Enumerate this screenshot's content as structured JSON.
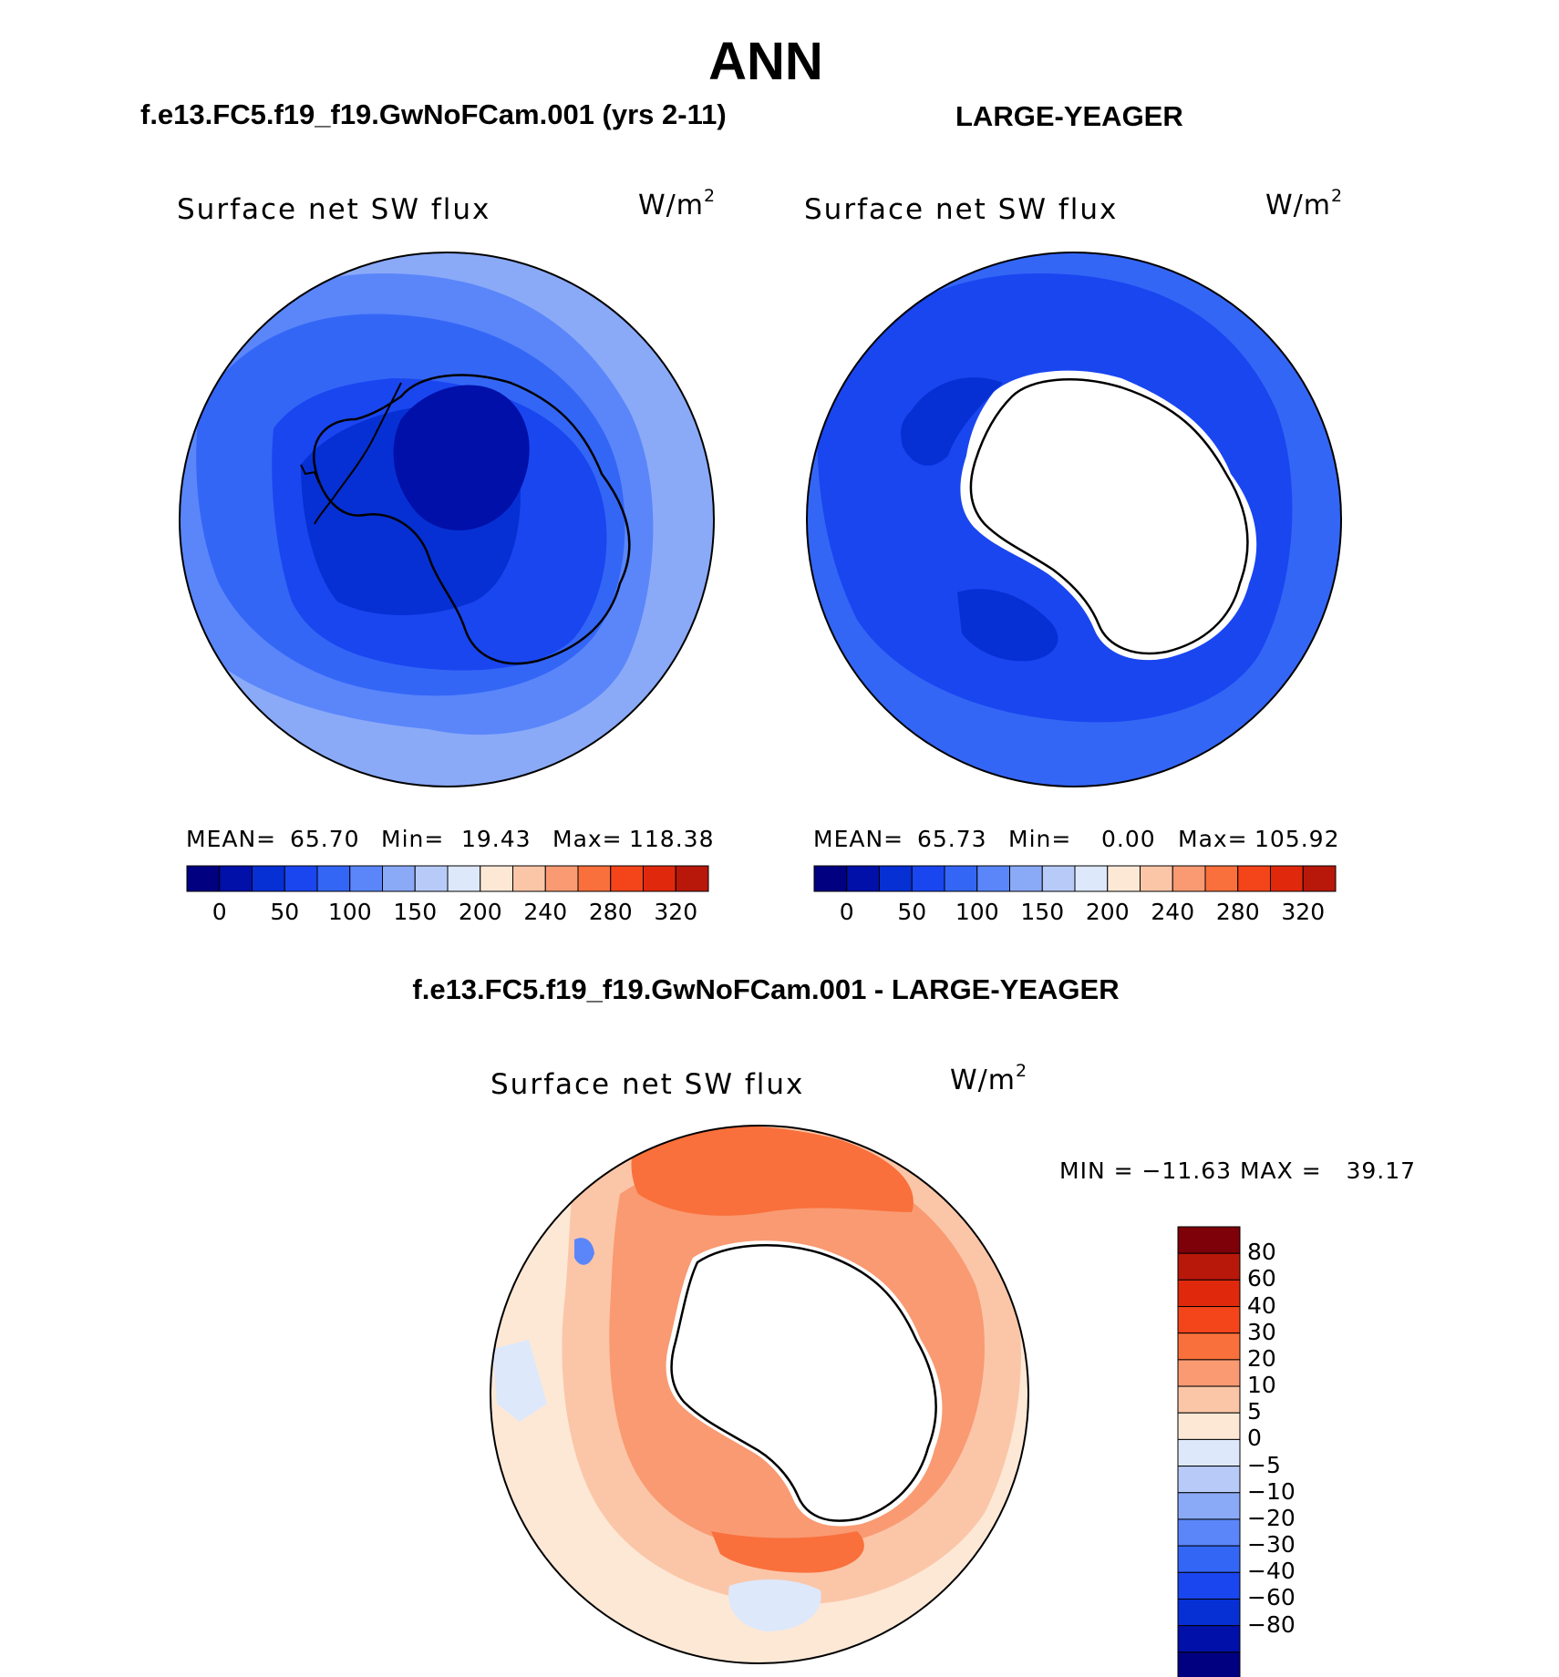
{
  "title": "ANN",
  "colors": {
    "blues": [
      "#000080",
      "#0010a8",
      "#0630d4",
      "#1a46f0",
      "#3466f6",
      "#5a86fa",
      "#8aaaf8",
      "#b8cbf8",
      "#dde8fb"
    ],
    "reds": [
      "#fde8d6",
      "#fbc6a8",
      "#f99a72",
      "#f9703c",
      "#f4441a",
      "#e0280c",
      "#b8180a",
      "#7e0008"
    ],
    "land": "#ffffff"
  },
  "panels": [
    {
      "case_title": "f.e13.FC5.f19_f19.GwNoFCam.001 (yrs 2-11)",
      "variable": "Surface net SW flux",
      "units": "W/m",
      "units_sup": "2",
      "mean_label": "MEAN=",
      "mean": "65.70",
      "min_label": "Min=",
      "min": "19.43",
      "max_label": "Max=",
      "max": "118.38",
      "colorbar_labels": [
        "0",
        "50",
        "100",
        "150",
        "200",
        "240",
        "280",
        "320"
      ]
    },
    {
      "case_title": "LARGE-YEAGER",
      "variable": "Surface net SW flux",
      "units": "W/m",
      "units_sup": "2",
      "mean_label": "MEAN=",
      "mean": "65.73",
      "min_label": "Min=",
      "min": "0.00",
      "max_label": "Max=",
      "max": "105.92",
      "colorbar_labels": [
        "0",
        "50",
        "100",
        "150",
        "200",
        "240",
        "280",
        "320"
      ]
    }
  ],
  "diff": {
    "title": "f.e13.FC5.f19_f19.GwNoFCam.001 - LARGE-YEAGER",
    "variable": "Surface net SW flux",
    "units": "W/m",
    "units_sup": "2",
    "minmax": "MIN = −11.63 MAX =   39.17",
    "colorbar_labels": [
      "80",
      "60",
      "40",
      "30",
      "20",
      "10",
      "5",
      "0",
      "−5",
      "−10",
      "−20",
      "−30",
      "−40",
      "−60",
      "−80"
    ]
  }
}
